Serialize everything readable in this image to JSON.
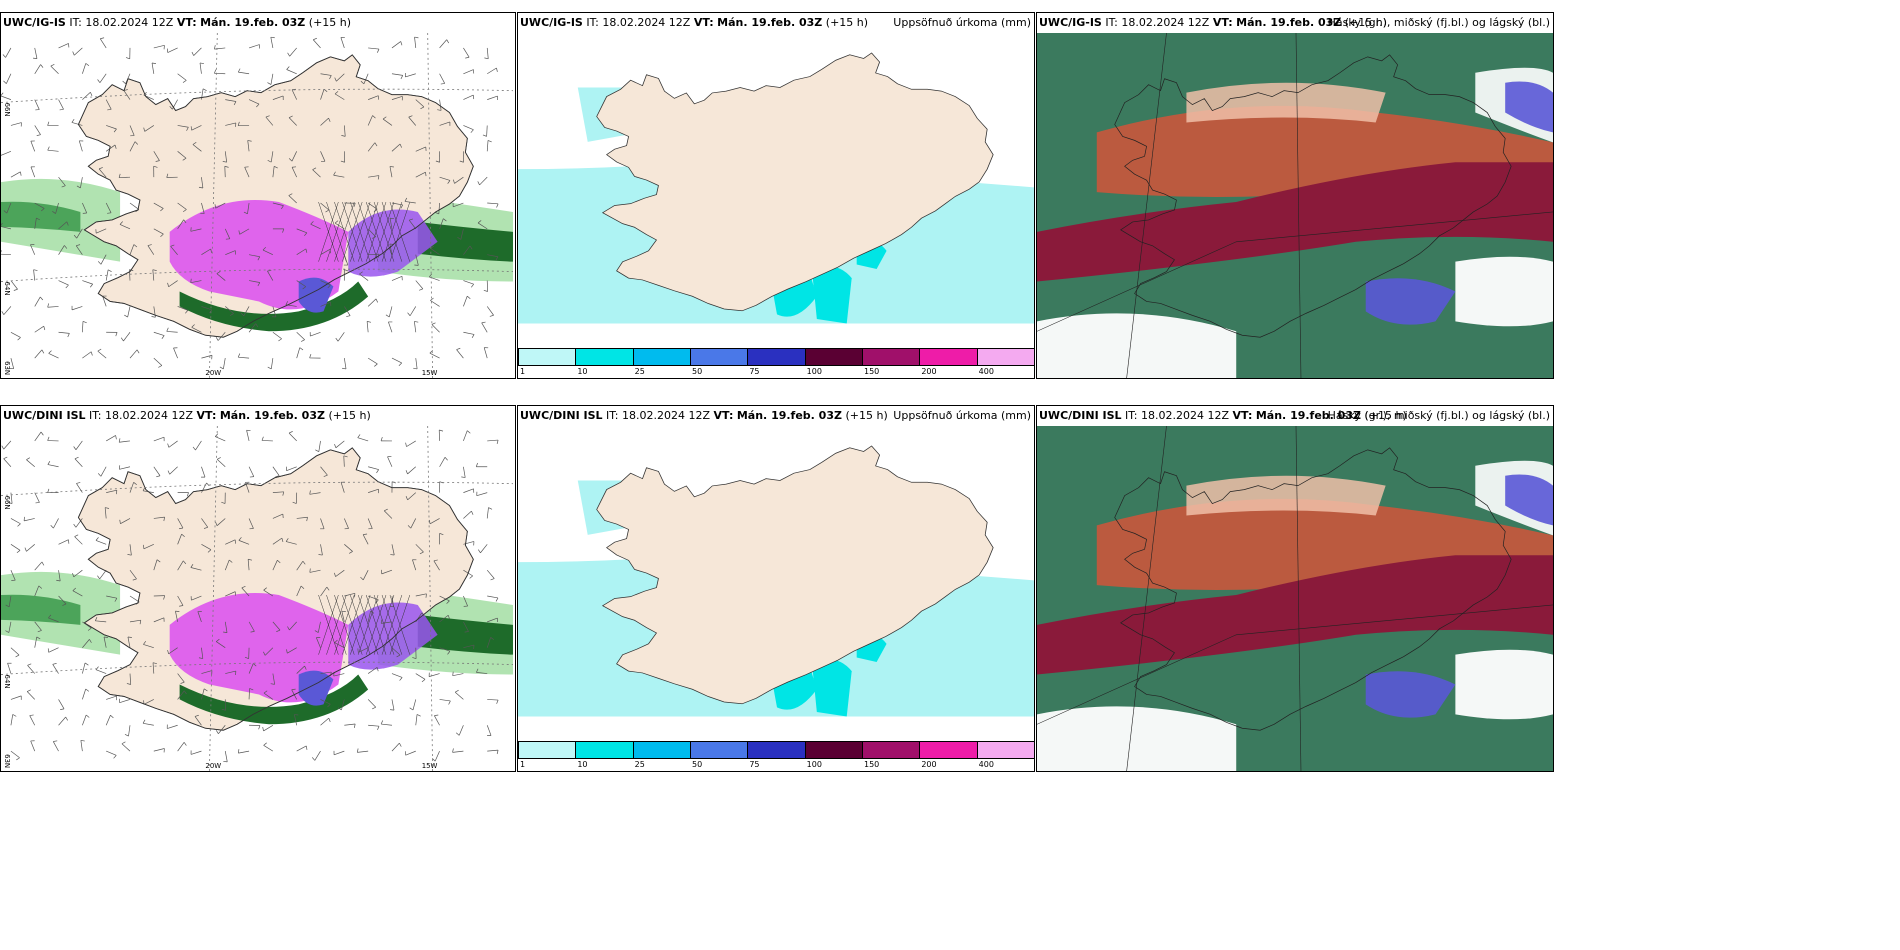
{
  "panels": [
    {
      "id": "p1",
      "model": "UWC/IG-IS",
      "it_label": "IT:",
      "it": "18.02.2024 12Z",
      "vt_label": "VT:",
      "vt": "Mán. 19.feb. 03Z",
      "lead": "(+15 h)",
      "right": "",
      "type": "wind"
    },
    {
      "id": "p2",
      "model": "UWC/IG-IS",
      "it_label": "IT:",
      "it": "18.02.2024 12Z",
      "vt_label": "VT:",
      "vt": "Mán. 19.feb. 03Z",
      "lead": "(+15 h)",
      "right": "Uppsöfnuð úrkoma (mm)",
      "type": "precip"
    },
    {
      "id": "p3",
      "model": "UWC/IG-IS",
      "it_label": "IT:",
      "it": "18.02.2024 12Z",
      "vt_label": "VT:",
      "vt": "Mán. 19.feb. 03Z",
      "lead": "(+15 h)",
      "right": "Hásky (gr.), miðský (fj.bl.) og lágský (bl.)",
      "type": "cloud"
    },
    {
      "id": "p4",
      "model": "UWC/DINI ISL",
      "it_label": "IT:",
      "it": "18.02.2024 12Z",
      "vt_label": "VT:",
      "vt": "Mán. 19.feb. 03Z",
      "lead": "(+15 h)",
      "right": "",
      "type": "wind"
    },
    {
      "id": "p5",
      "model": "UWC/DINI ISL",
      "it_label": "IT:",
      "it": "18.02.2024 12Z",
      "vt_label": "VT:",
      "vt": "Mán. 19.feb. 03Z",
      "lead": "(+15 h)",
      "right": "Uppsöfnuð úrkoma (mm)",
      "type": "precip"
    },
    {
      "id": "p6",
      "model": "UWC/DINI ISL",
      "it_label": "IT:",
      "it": "18.02.2024 12Z",
      "vt_label": "VT:",
      "vt": "Mán. 19.feb. 03Z",
      "lead": "(+15 h)",
      "right": "Hásky (gr.), miðský (fj.bl.) og lágský (bl.)",
      "type": "cloud"
    }
  ],
  "colorbar": {
    "ticks": [
      "1",
      "10",
      "25",
      "50",
      "75",
      "100",
      "150",
      "200",
      "400"
    ],
    "colors": [
      "#bff7f7",
      "#00e5e5",
      "#00bbee",
      "#4a78e8",
      "#2a30c0",
      "#5a0033",
      "#a0106a",
      "#ee1ca8",
      "#f4aaf0"
    ]
  },
  "grid_labels": {
    "lat_top": "66N",
    "lat_mid": "64N",
    "lat_bottom": "63N",
    "lon_left": "20W",
    "lon_right": "15W"
  },
  "colors": {
    "land": "#f6e7d8",
    "sea_precip": "#aef3f3",
    "sea": "#ffffff",
    "snow_pink": "#dd55ee",
    "snow_purple": "#9955ee",
    "rain_green": "#1e6b2a",
    "rain_light": "#a8e0a8",
    "cloud_green": "#3b7a5e",
    "cloud_maroon": "#8a1a3a",
    "cloud_red": "#d2553a",
    "cloud_blue": "#5a58d6"
  }
}
